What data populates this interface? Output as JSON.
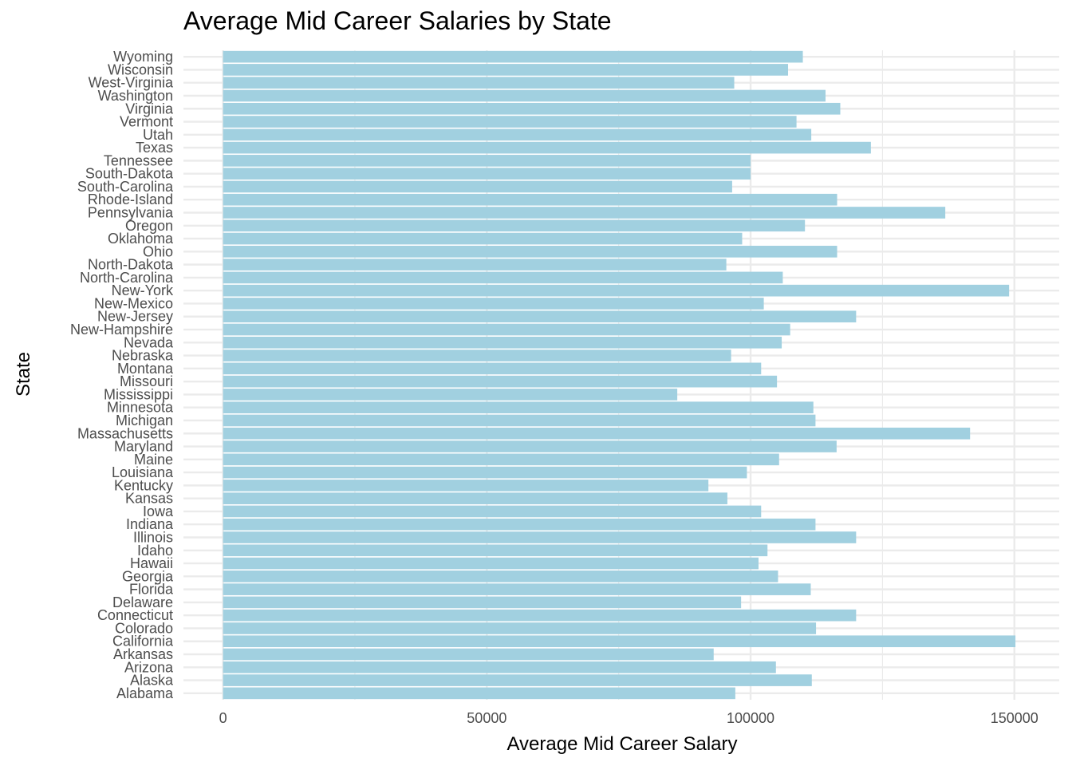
{
  "chart_data": {
    "type": "bar",
    "orientation": "horizontal",
    "title": "Average Mid Career Salaries by State",
    "xlabel": "Average Mid Career Salary",
    "ylabel": "State",
    "xlim": [
      -7500,
      158500
    ],
    "xticks": [
      0,
      50000,
      100000,
      150000
    ],
    "xtick_labels": [
      "0",
      "50000",
      "100000",
      "150000"
    ],
    "grid": true,
    "bar_color": "#a1d0e0",
    "grid_color": "#ebebeb",
    "categories": [
      "Alabama",
      "Alaska",
      "Arizona",
      "Arkansas",
      "California",
      "Colorado",
      "Connecticut",
      "Delaware",
      "Florida",
      "Georgia",
      "Hawaii",
      "Idaho",
      "Illinois",
      "Indiana",
      "Iowa",
      "Kansas",
      "Kentucky",
      "Louisiana",
      "Maine",
      "Maryland",
      "Massachusetts",
      "Michigan",
      "Minnesota",
      "Mississippi",
      "Missouri",
      "Montana",
      "Nebraska",
      "Nevada",
      "New-Hampshire",
      "New-Jersey",
      "New-Mexico",
      "New-York",
      "North-Carolina",
      "North-Dakota",
      "Ohio",
      "Oklahoma",
      "Oregon",
      "Pennsylvania",
      "Rhode-Island",
      "South-Carolina",
      "South-Dakota",
      "Tennessee",
      "Texas",
      "Utah",
      "Vermont",
      "Virginia",
      "Washington",
      "West-Virginia",
      "Wisconsin",
      "Wyoming"
    ],
    "values": [
      97100,
      111600,
      104800,
      93000,
      150200,
      112400,
      120000,
      98200,
      111400,
      105200,
      101500,
      103200,
      120000,
      112300,
      102000,
      95600,
      92000,
      99300,
      105400,
      116300,
      141600,
      112300,
      111900,
      86100,
      105000,
      102000,
      96300,
      105900,
      107500,
      120000,
      102500,
      149000,
      106100,
      95400,
      116400,
      98400,
      110300,
      136900,
      116400,
      96500,
      100000,
      100000,
      122800,
      111500,
      108700,
      117000,
      114200,
      96900,
      107100,
      109900
    ]
  }
}
